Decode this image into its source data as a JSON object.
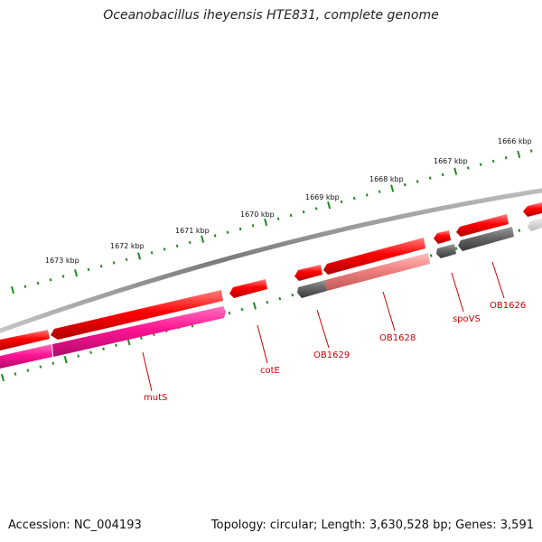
{
  "title": "Oceanobacillus iheyensis HTE831, complete genome",
  "footer": {
    "accession": "Accession: NC_004193",
    "topology": "Topology: circular; Length: 3,630,528 bp; Genes: 3,591"
  },
  "colors": {
    "background": "#ffffff",
    "backbone": "#888888",
    "ticks": "#228822",
    "gene_label": "#cc0000",
    "forward_gene": "#ff0000",
    "reverse_gene_pink": "#ff1493",
    "reverse_gene_light": "#f08080",
    "reverse_gene_gray": "#666666"
  },
  "kbp_labels": [
    "1666 kbp",
    "1667 kbp",
    "1668 kbp",
    "1669 kbp",
    "1670 kbp",
    "1671 kbp",
    "1672 kbp",
    "1673 kbp"
  ],
  "genes": [
    {
      "name": "mutS",
      "strand": "reverse",
      "color": "#ff1493"
    },
    {
      "name": "cotE",
      "strand": "forward",
      "color": "#ff0000"
    },
    {
      "name": "OB1629",
      "strand": "reverse",
      "color": "#666666"
    },
    {
      "name": "OB1628",
      "strand": "reverse",
      "color": "#f08080"
    },
    {
      "name": "spoVS",
      "strand": "reverse",
      "color": "#666666"
    },
    {
      "name": "OB1626",
      "strand": "reverse",
      "color": "#666666"
    }
  ]
}
